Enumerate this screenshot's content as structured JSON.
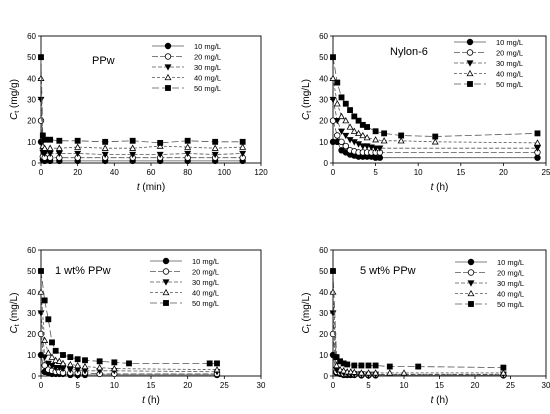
{
  "chart_data": [
    {
      "type": "line",
      "title": "PPw",
      "xlabel": "t (min)",
      "ylabel": "Ct (mg/g)",
      "xlim": [
        0,
        120
      ],
      "ylim": [
        0,
        60
      ],
      "xticks": [
        0,
        20,
        40,
        60,
        80,
        100,
        120
      ],
      "yticks": [
        0,
        10,
        20,
        30,
        40,
        50,
        60
      ],
      "legend_position": "top-right",
      "series": [
        {
          "name": "10 mg/L",
          "marker": "filled-circle",
          "x": [
            0,
            1,
            2,
            5,
            10,
            20,
            35,
            50,
            65,
            80,
            95,
            110
          ],
          "y": [
            10,
            1.5,
            1,
            1,
            1,
            1,
            1,
            1,
            1,
            1,
            1,
            1
          ]
        },
        {
          "name": "20 mg/L",
          "marker": "open-circle",
          "x": [
            0,
            1,
            2,
            5,
            10,
            20,
            35,
            50,
            65,
            80,
            95,
            110
          ],
          "y": [
            20,
            3,
            2.5,
            2.5,
            2.5,
            2.5,
            2.5,
            2.5,
            2.5,
            2.5,
            2.5,
            2.5
          ]
        },
        {
          "name": "30 mg/L",
          "marker": "filled-triangle-down",
          "x": [
            0,
            1,
            2,
            5,
            10,
            20,
            35,
            50,
            65,
            80,
            95,
            110
          ],
          "y": [
            30,
            5,
            4.5,
            4.5,
            4.5,
            4.5,
            4,
            4,
            4,
            4.5,
            4,
            4.5
          ]
        },
        {
          "name": "40 mg/L",
          "marker": "open-triangle-up",
          "x": [
            0,
            1,
            2,
            5,
            10,
            20,
            35,
            50,
            65,
            80,
            95,
            110
          ],
          "y": [
            40,
            8,
            7,
            7,
            7,
            7.5,
            7,
            7,
            8,
            7.5,
            7,
            7.5
          ]
        },
        {
          "name": "50 mg/L",
          "marker": "filled-square",
          "x": [
            0,
            1,
            2,
            5,
            10,
            20,
            35,
            50,
            65,
            80,
            95,
            110
          ],
          "y": [
            50,
            13,
            11,
            11,
            10.5,
            10.5,
            10,
            10.5,
            9.5,
            10.5,
            10,
            10
          ]
        }
      ]
    },
    {
      "type": "line",
      "title": "Nylon-6",
      "xlabel": "t (h)",
      "ylabel": "Ct (mg/L)",
      "xlim": [
        0,
        25
      ],
      "ylim": [
        0,
        60
      ],
      "xticks": [
        0,
        5,
        10,
        15,
        20,
        25
      ],
      "yticks": [
        0,
        10,
        20,
        30,
        40,
        50,
        60
      ],
      "legend_position": "top-right",
      "series": [
        {
          "name": "10 mg/L",
          "marker": "filled-circle",
          "x": [
            0,
            0.5,
            1,
            1.5,
            2,
            2.5,
            3,
            3.5,
            4,
            4.5,
            5,
            5.5,
            24
          ],
          "y": [
            10,
            10,
            6,
            5,
            4,
            3.5,
            3,
            3,
            3,
            3,
            2.5,
            2.5,
            2.5
          ]
        },
        {
          "name": "20 mg/L",
          "marker": "open-circle",
          "x": [
            0,
            0.5,
            1,
            1.5,
            2,
            2.5,
            3,
            3.5,
            4,
            4.5,
            5,
            5.5,
            24
          ],
          "y": [
            20,
            13,
            10,
            8,
            6,
            5.5,
            5,
            5,
            5,
            5,
            5,
            5,
            5
          ]
        },
        {
          "name": "30 mg/L",
          "marker": "filled-triangle-down",
          "x": [
            0,
            0.5,
            1,
            1.5,
            2,
            2.5,
            3,
            3.5,
            4,
            4.5,
            5,
            5.5,
            24
          ],
          "y": [
            30,
            20,
            15,
            13,
            11,
            10,
            9,
            8,
            8,
            7.5,
            7,
            7,
            7
          ]
        },
        {
          "name": "40 mg/L",
          "marker": "open-triangle-up",
          "x": [
            0,
            0.5,
            1,
            1.5,
            2,
            2.5,
            3,
            3.5,
            4,
            5,
            6,
            8,
            12,
            24
          ],
          "y": [
            40,
            28,
            22,
            20,
            17,
            15,
            14,
            13,
            12,
            11,
            10.5,
            10.5,
            10,
            9.5
          ]
        },
        {
          "name": "50 mg/L",
          "marker": "filled-square",
          "x": [
            0,
            0.5,
            1,
            1.5,
            2,
            2.5,
            3,
            3.5,
            4,
            5,
            6,
            8,
            12,
            24
          ],
          "y": [
            50,
            38,
            31,
            28,
            25,
            22,
            20,
            18,
            17,
            15,
            14,
            13,
            12.5,
            14
          ]
        }
      ]
    },
    {
      "type": "line",
      "title": "1 wt% PPw",
      "xlabel": "t (h)",
      "ylabel": "Ct (mg/L)",
      "xlim": [
        0,
        30
      ],
      "ylim": [
        0,
        60
      ],
      "xticks": [
        0,
        5,
        10,
        15,
        20,
        25,
        30
      ],
      "yticks": [
        0,
        10,
        20,
        30,
        40,
        50,
        60
      ],
      "legend_position": "top-right",
      "series": [
        {
          "name": "10 mg/L",
          "marker": "filled-circle",
          "x": [
            0,
            0.5,
            1,
            1.5,
            2,
            2.5,
            3,
            4,
            5,
            6,
            24
          ],
          "y": [
            10,
            2,
            1.5,
            1,
            1,
            1,
            1,
            0.5,
            0.5,
            0.5,
            0.5
          ]
        },
        {
          "name": "20 mg/L",
          "marker": "open-circle",
          "x": [
            0,
            0.5,
            1,
            1.5,
            2,
            2.5,
            3,
            4,
            5,
            6,
            8,
            10,
            24
          ],
          "y": [
            20,
            5,
            3,
            2.5,
            2,
            2,
            1.5,
            1.5,
            1.5,
            1.5,
            1,
            1,
            1
          ]
        },
        {
          "name": "30 mg/L",
          "marker": "filled-triangle-down",
          "x": [
            0,
            0.5,
            1,
            1.5,
            2,
            2.5,
            3,
            4,
            5,
            6,
            8,
            10,
            24
          ],
          "y": [
            30,
            9,
            6,
            5,
            4,
            4,
            3.5,
            3,
            3,
            2.5,
            2.5,
            2.5,
            2
          ]
        },
        {
          "name": "40 mg/L",
          "marker": "open-triangle-up",
          "x": [
            0,
            0.5,
            1,
            1.5,
            2,
            2.5,
            3,
            4,
            5,
            6,
            8,
            10,
            24
          ],
          "y": [
            40,
            17,
            11,
            9,
            7.5,
            7,
            6,
            5.5,
            5,
            4.5,
            4,
            3.5,
            3
          ]
        },
        {
          "name": "50 mg/L",
          "marker": "filled-square",
          "x": [
            0,
            0.5,
            1,
            1.5,
            2,
            3,
            4,
            5,
            6,
            8,
            10,
            12,
            23,
            24
          ],
          "y": [
            50,
            36,
            27,
            16,
            12,
            10,
            9,
            8,
            7.5,
            7,
            6.5,
            6,
            6,
            6
          ]
        }
      ]
    },
    {
      "type": "line",
      "title": "5 wt% PPw",
      "xlabel": "t (h)",
      "ylabel": "Ct (mg/L)",
      "xlim": [
        0,
        30
      ],
      "ylim": [
        0,
        60
      ],
      "xticks": [
        0,
        5,
        10,
        15,
        20,
        25,
        30
      ],
      "yticks": [
        0,
        10,
        20,
        30,
        40,
        50,
        60
      ],
      "legend_position": "top-right",
      "series": [
        {
          "name": "10 mg/L",
          "marker": "filled-circle",
          "x": [
            0,
            0.5,
            1,
            1.5,
            2,
            2.5,
            3,
            4,
            5,
            6,
            24
          ],
          "y": [
            10,
            1.5,
            1,
            0.5,
            0.5,
            0.5,
            0.5,
            0.3,
            0.3,
            0.3,
            0.3
          ]
        },
        {
          "name": "20 mg/L",
          "marker": "open-circle",
          "x": [
            0,
            0.5,
            1,
            1.5,
            2,
            2.5,
            3,
            4,
            5,
            6,
            24
          ],
          "y": [
            20,
            2,
            1.5,
            1,
            1,
            1,
            0.8,
            0.7,
            0.6,
            0.6,
            0.5
          ]
        },
        {
          "name": "30 mg/L",
          "marker": "filled-triangle-down",
          "x": [
            0,
            0.5,
            1,
            1.5,
            2,
            2.5,
            3,
            4,
            5,
            6,
            24
          ],
          "y": [
            30,
            3,
            2,
            1.5,
            1.2,
            1,
            1,
            1,
            0.8,
            0.8,
            0.8
          ]
        },
        {
          "name": "40 mg/L",
          "marker": "open-triangle-up",
          "x": [
            0,
            0.5,
            1,
            1.5,
            2,
            2.5,
            3,
            4,
            5,
            6,
            8,
            10,
            24
          ],
          "y": [
            40,
            5,
            3,
            2.5,
            2,
            2,
            1.8,
            1.5,
            1.5,
            1.5,
            1.5,
            1.5,
            1.5
          ]
        },
        {
          "name": "50 mg/L",
          "marker": "filled-square",
          "x": [
            0,
            0.5,
            1,
            1.5,
            2,
            3,
            4,
            5,
            6,
            8,
            12,
            24
          ],
          "y": [
            50,
            9,
            7,
            6,
            5.5,
            5,
            5,
            5,
            5,
            4.5,
            4.5,
            4
          ]
        }
      ]
    }
  ]
}
